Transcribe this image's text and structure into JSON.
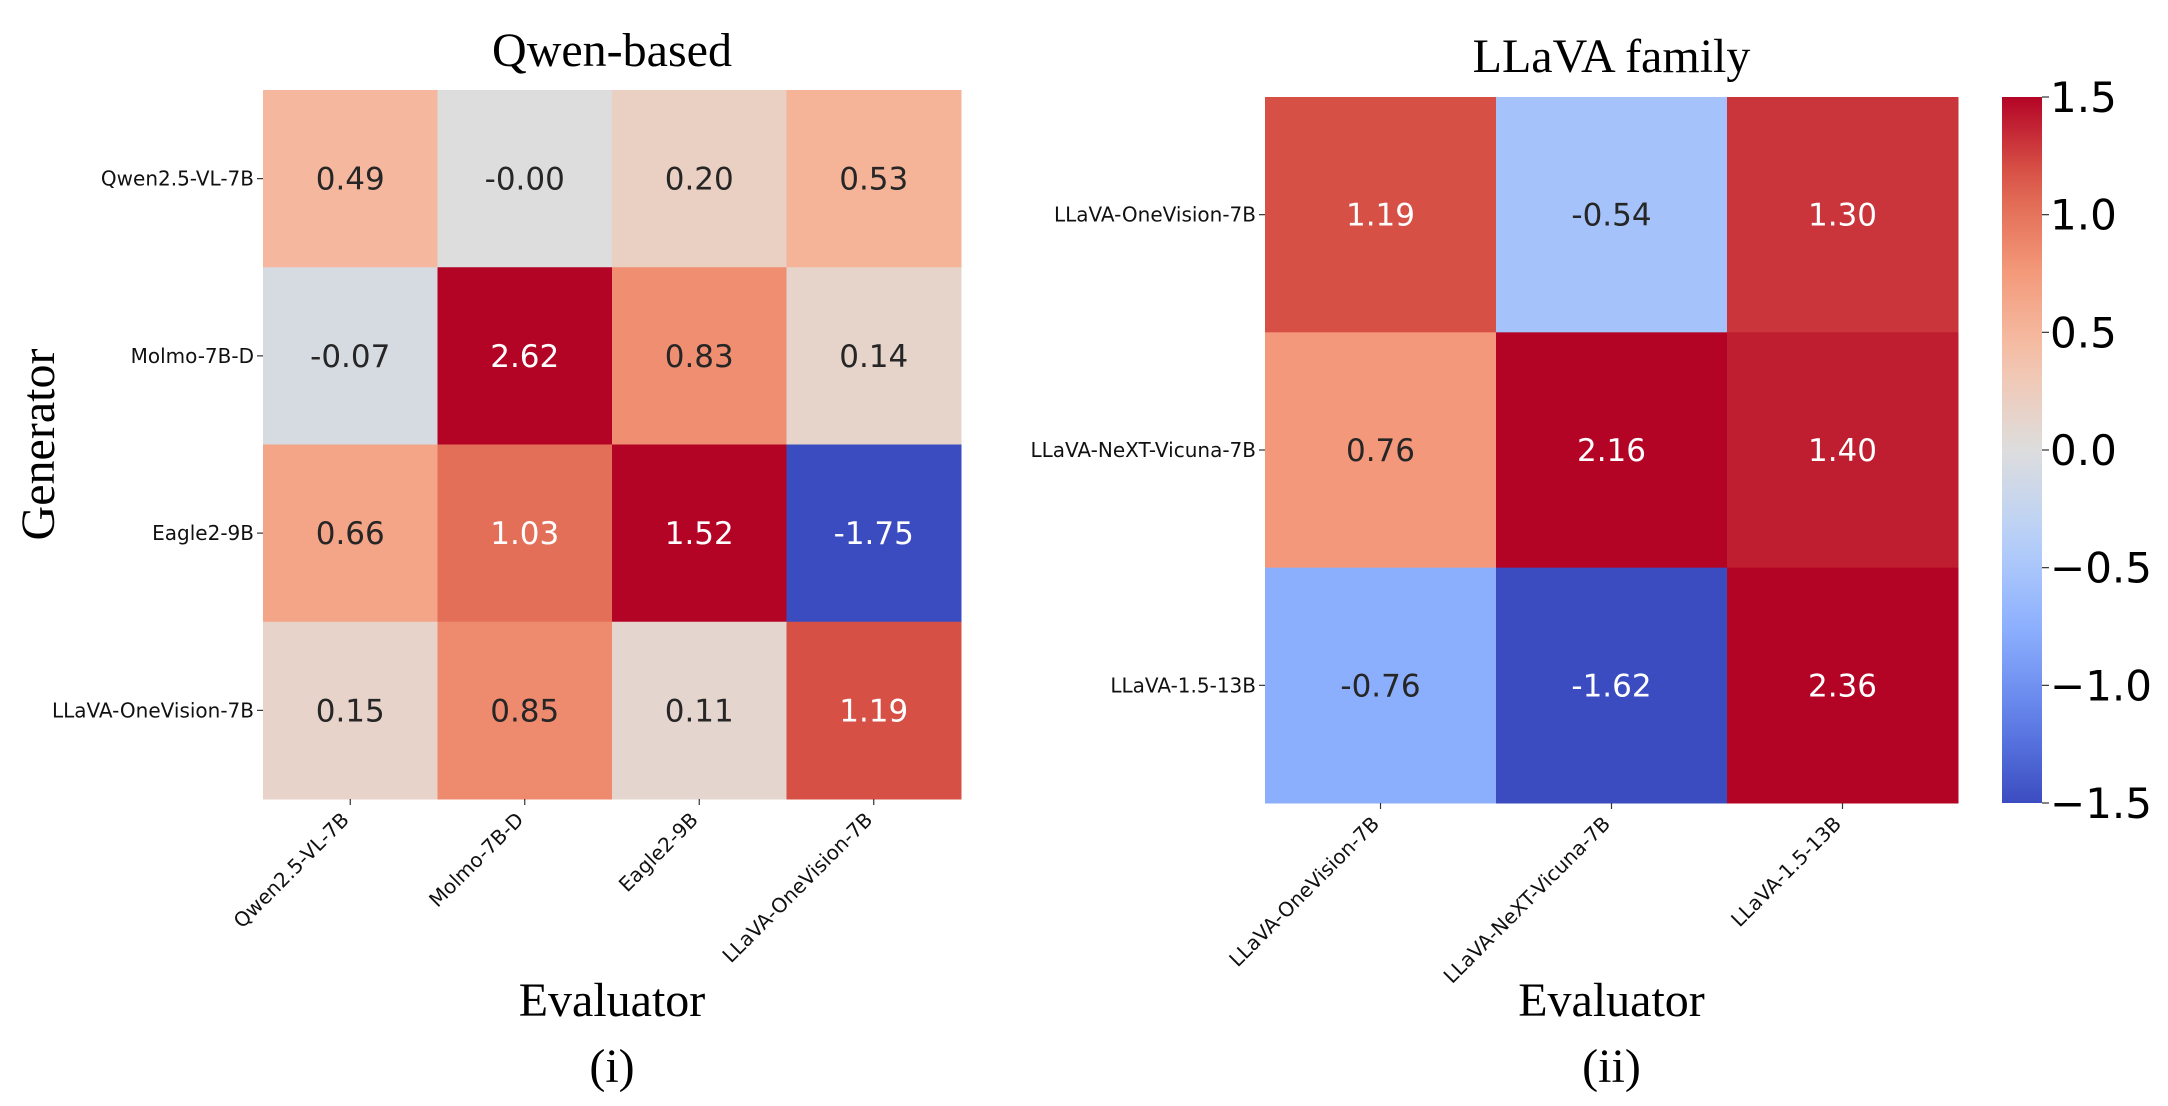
{
  "chart_data": [
    {
      "type": "heatmap",
      "title": "Qwen-based",
      "xlabel": "Evaluator",
      "ylabel": "Generator",
      "caption": "(i)",
      "x_categories": [
        "Qwen2.5-VL-7B",
        "Molmo-7B-D",
        "Eagle2-9B",
        "LLaVA-OneVision-7B"
      ],
      "y_categories": [
        "Qwen2.5-VL-7B",
        "Molmo-7B-D",
        "Eagle2-9B",
        "LLaVA-OneVision-7B"
      ],
      "values": [
        [
          "0.49",
          "-0.00",
          "0.20",
          "0.53"
        ],
        [
          "-0.07",
          "2.62",
          "0.83",
          "0.14"
        ],
        [
          "0.66",
          "1.03",
          "1.52",
          "-1.75"
        ],
        [
          "0.15",
          "0.85",
          "0.11",
          "1.19"
        ]
      ],
      "colormap": "coolwarm",
      "vmin": -1.5,
      "vmax": 1.5
    },
    {
      "type": "heatmap",
      "title": "LLaVA family",
      "xlabel": "Evaluator",
      "ylabel": "",
      "caption": "(ii)",
      "x_categories": [
        "LLaVA-OneVision-7B",
        "LLaVA-NeXT-Vicuna-7B",
        "LLaVA-1.5-13B"
      ],
      "y_categories": [
        "LLaVA-OneVision-7B",
        "LLaVA-NeXT-Vicuna-7B",
        "LLaVA-1.5-13B"
      ],
      "values": [
        [
          "1.19",
          "-0.54",
          "1.30"
        ],
        [
          "0.76",
          "2.16",
          "1.40"
        ],
        [
          "-0.76",
          "-1.62",
          "2.36"
        ]
      ],
      "colormap": "coolwarm",
      "vmin": -1.5,
      "vmax": 1.5,
      "colorbar": {
        "ticks": [
          "1.5",
          "1.0",
          "0.5",
          "0.0",
          "−0.5",
          "−1.0",
          "−1.5"
        ],
        "tick_values": [
          1.5,
          1.0,
          0.5,
          0.0,
          -0.5,
          -1.0,
          -1.5
        ]
      }
    }
  ]
}
